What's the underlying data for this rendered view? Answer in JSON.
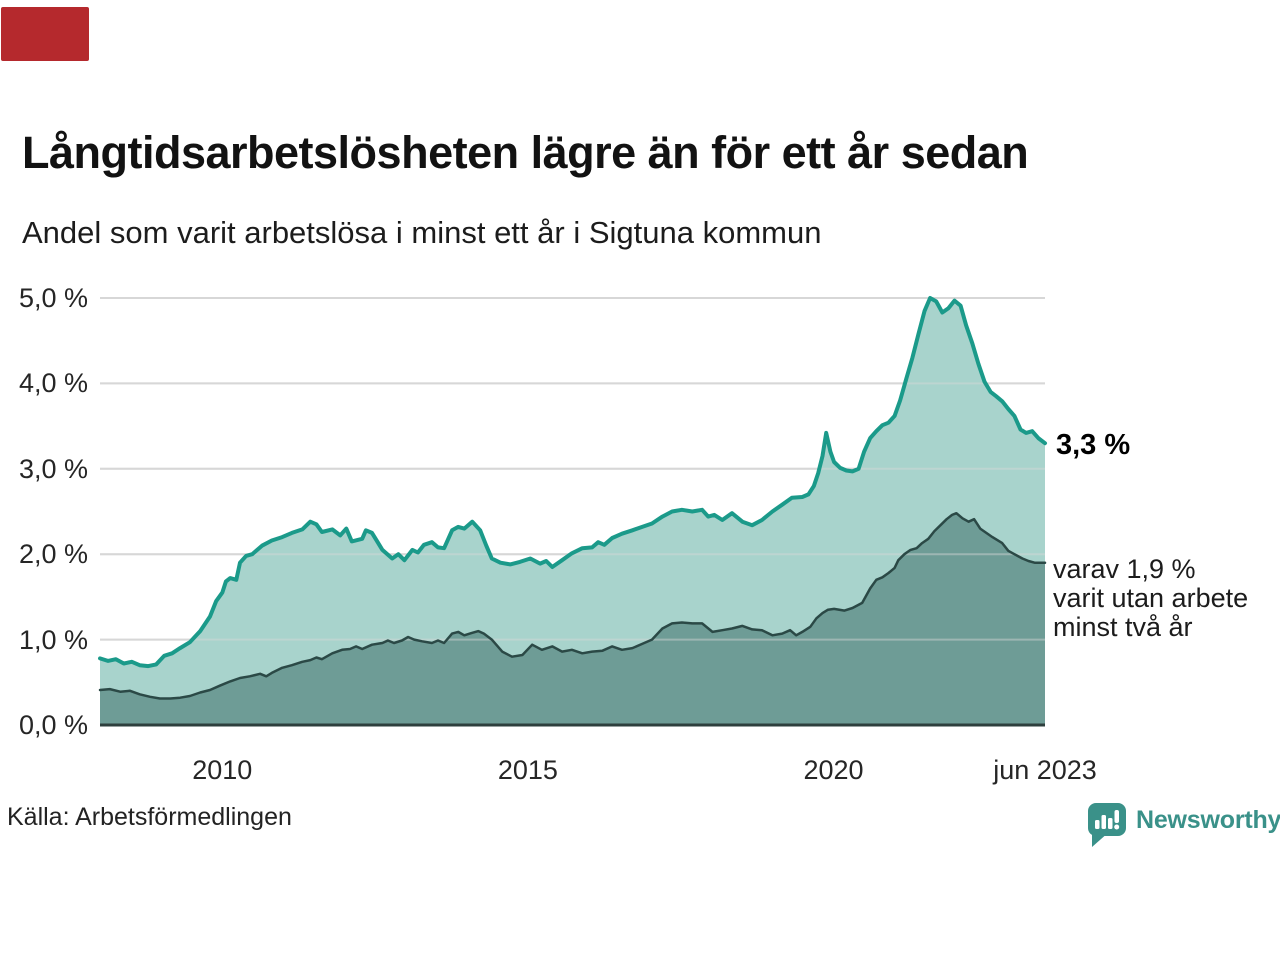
{
  "header": {
    "title": "Långtidsarbetslösheten lägre än för ett år sedan",
    "subtitle": "Andel som varit arbetslösa i minst ett år i Sigtuna kommun"
  },
  "footer": {
    "source": "Källa: Arbetsförmedlingen",
    "brand": "Newsworthy"
  },
  "marker": {
    "color": "#b5292d"
  },
  "chart_data": {
    "type": "area",
    "title": "Långtidsarbetslösheten lägre än för ett år sedan",
    "subtitle": "Andel som varit arbetslösa i minst ett år i Sigtuna kommun",
    "grid": true,
    "legend_position": "none",
    "colors": {
      "grid": "#d8d8d8",
      "grid_overlay": "rgba(216,216,216,0.45)",
      "baseline": "#2e3f3d",
      "brand_teal": "#3a9189"
    },
    "x_axis": {
      "range": [
        2008,
        2023.46
      ],
      "ticks": [
        {
          "label": "2010",
          "year": 2010
        },
        {
          "label": "2015",
          "year": 2015
        },
        {
          "label": "2020",
          "year": 2020
        },
        {
          "label": "jun 2023",
          "year": 2023.46
        }
      ]
    },
    "y_axis": {
      "range": [
        0,
        5.5
      ],
      "unit": "%",
      "gridlines": [
        1,
        2,
        3,
        4,
        5
      ],
      "ticks": [
        {
          "label": "5,0 %",
          "value": 5
        },
        {
          "label": "4,0 %",
          "value": 4
        },
        {
          "label": "3,0 %",
          "value": 3
        },
        {
          "label": "2,0 %",
          "value": 2
        },
        {
          "label": "1,0 %",
          "value": 1
        },
        {
          "label": "0,0 %",
          "value": 0
        }
      ]
    },
    "annotations": [
      {
        "text": "3,3 %",
        "value": 3.3
      },
      {
        "lines": [
          "varav 1,9 %",
          "varit utan arbete",
          "minst två år"
        ],
        "value": 1.9
      }
    ],
    "series": [
      {
        "name": "arbetslösa minst ett år",
        "line_color": "#1b9a8a",
        "fill_color": "#a8d3cc",
        "line_width": 4,
        "end_value": "3,3 %",
        "points": [
          [
            2008.0,
            0.78
          ],
          [
            2008.13,
            0.75
          ],
          [
            2008.26,
            0.77
          ],
          [
            2008.39,
            0.72
          ],
          [
            2008.52,
            0.74
          ],
          [
            2008.65,
            0.7
          ],
          [
            2008.79,
            0.69
          ],
          [
            2008.92,
            0.71
          ],
          [
            2009.05,
            0.81
          ],
          [
            2009.18,
            0.84
          ],
          [
            2009.31,
            0.9
          ],
          [
            2009.47,
            0.97
          ],
          [
            2009.64,
            1.1
          ],
          [
            2009.8,
            1.27
          ],
          [
            2009.9,
            1.45
          ],
          [
            2010.0,
            1.55
          ],
          [
            2010.06,
            1.68
          ],
          [
            2010.13,
            1.72
          ],
          [
            2010.23,
            1.7
          ],
          [
            2010.29,
            1.9
          ],
          [
            2010.39,
            1.98
          ],
          [
            2010.49,
            2.0
          ],
          [
            2010.65,
            2.1
          ],
          [
            2010.81,
            2.16
          ],
          [
            2010.98,
            2.2
          ],
          [
            2011.14,
            2.25
          ],
          [
            2011.31,
            2.29
          ],
          [
            2011.44,
            2.38
          ],
          [
            2011.54,
            2.35
          ],
          [
            2011.63,
            2.26
          ],
          [
            2011.8,
            2.29
          ],
          [
            2011.93,
            2.22
          ],
          [
            2012.03,
            2.3
          ],
          [
            2012.12,
            2.15
          ],
          [
            2012.29,
            2.18
          ],
          [
            2012.35,
            2.28
          ],
          [
            2012.45,
            2.25
          ],
          [
            2012.62,
            2.05
          ],
          [
            2012.78,
            1.95
          ],
          [
            2012.88,
            2.0
          ],
          [
            2012.98,
            1.93
          ],
          [
            2013.11,
            2.05
          ],
          [
            2013.2,
            2.02
          ],
          [
            2013.3,
            2.11
          ],
          [
            2013.43,
            2.14
          ],
          [
            2013.53,
            2.08
          ],
          [
            2013.63,
            2.07
          ],
          [
            2013.76,
            2.28
          ],
          [
            2013.86,
            2.32
          ],
          [
            2013.96,
            2.3
          ],
          [
            2014.09,
            2.38
          ],
          [
            2014.22,
            2.28
          ],
          [
            2014.32,
            2.1
          ],
          [
            2014.41,
            1.95
          ],
          [
            2014.55,
            1.9
          ],
          [
            2014.71,
            1.88
          ],
          [
            2014.87,
            1.91
          ],
          [
            2015.04,
            1.95
          ],
          [
            2015.2,
            1.89
          ],
          [
            2015.3,
            1.92
          ],
          [
            2015.4,
            1.85
          ],
          [
            2015.56,
            1.93
          ],
          [
            2015.72,
            2.01
          ],
          [
            2015.89,
            2.07
          ],
          [
            2016.05,
            2.08
          ],
          [
            2016.15,
            2.14
          ],
          [
            2016.25,
            2.11
          ],
          [
            2016.38,
            2.19
          ],
          [
            2016.54,
            2.24
          ],
          [
            2016.71,
            2.28
          ],
          [
            2016.87,
            2.32
          ],
          [
            2017.03,
            2.36
          ],
          [
            2017.2,
            2.44
          ],
          [
            2017.36,
            2.5
          ],
          [
            2017.52,
            2.52
          ],
          [
            2017.69,
            2.5
          ],
          [
            2017.85,
            2.52
          ],
          [
            2017.95,
            2.44
          ],
          [
            2018.05,
            2.46
          ],
          [
            2018.18,
            2.4
          ],
          [
            2018.34,
            2.48
          ],
          [
            2018.51,
            2.38
          ],
          [
            2018.67,
            2.34
          ],
          [
            2018.83,
            2.4
          ],
          [
            2019.0,
            2.5
          ],
          [
            2019.16,
            2.58
          ],
          [
            2019.32,
            2.66
          ],
          [
            2019.49,
            2.67
          ],
          [
            2019.59,
            2.7
          ],
          [
            2019.68,
            2.8
          ],
          [
            2019.75,
            2.95
          ],
          [
            2019.82,
            3.15
          ],
          [
            2019.88,
            3.42
          ],
          [
            2019.95,
            3.2
          ],
          [
            2020.01,
            3.08
          ],
          [
            2020.11,
            3.01
          ],
          [
            2020.21,
            2.98
          ],
          [
            2020.31,
            2.97
          ],
          [
            2020.41,
            3.0
          ],
          [
            2020.5,
            3.2
          ],
          [
            2020.6,
            3.36
          ],
          [
            2020.7,
            3.44
          ],
          [
            2020.8,
            3.51
          ],
          [
            2020.9,
            3.54
          ],
          [
            2021.0,
            3.62
          ],
          [
            2021.09,
            3.8
          ],
          [
            2021.19,
            4.05
          ],
          [
            2021.29,
            4.3
          ],
          [
            2021.39,
            4.58
          ],
          [
            2021.49,
            4.85
          ],
          [
            2021.58,
            5.0
          ],
          [
            2021.68,
            4.96
          ],
          [
            2021.78,
            4.83
          ],
          [
            2021.88,
            4.88
          ],
          [
            2021.98,
            4.97
          ],
          [
            2022.08,
            4.91
          ],
          [
            2022.17,
            4.68
          ],
          [
            2022.27,
            4.47
          ],
          [
            2022.37,
            4.23
          ],
          [
            2022.47,
            4.02
          ],
          [
            2022.57,
            3.9
          ],
          [
            2022.66,
            3.85
          ],
          [
            2022.76,
            3.79
          ],
          [
            2022.86,
            3.7
          ],
          [
            2022.96,
            3.62
          ],
          [
            2023.06,
            3.46
          ],
          [
            2023.15,
            3.42
          ],
          [
            2023.25,
            3.44
          ],
          [
            2023.35,
            3.36
          ],
          [
            2023.46,
            3.3
          ]
        ]
      },
      {
        "name": "arbetslösa minst två år",
        "line_color": "#2b4946",
        "fill_color": "#6e9c96",
        "line_width": 2.5,
        "end_value": "1,9 %",
        "points": [
          [
            2008.0,
            0.41
          ],
          [
            2008.16,
            0.42
          ],
          [
            2008.33,
            0.39
          ],
          [
            2008.49,
            0.4
          ],
          [
            2008.65,
            0.36
          ],
          [
            2008.82,
            0.33
          ],
          [
            2008.98,
            0.31
          ],
          [
            2009.15,
            0.31
          ],
          [
            2009.31,
            0.32
          ],
          [
            2009.47,
            0.34
          ],
          [
            2009.64,
            0.38
          ],
          [
            2009.8,
            0.41
          ],
          [
            2009.96,
            0.46
          ],
          [
            2010.13,
            0.51
          ],
          [
            2010.29,
            0.55
          ],
          [
            2010.45,
            0.57
          ],
          [
            2010.62,
            0.6
          ],
          [
            2010.72,
            0.57
          ],
          [
            2010.81,
            0.61
          ],
          [
            2010.98,
            0.67
          ],
          [
            2011.14,
            0.7
          ],
          [
            2011.31,
            0.74
          ],
          [
            2011.44,
            0.76
          ],
          [
            2011.54,
            0.79
          ],
          [
            2011.63,
            0.77
          ],
          [
            2011.8,
            0.84
          ],
          [
            2011.96,
            0.88
          ],
          [
            2012.09,
            0.89
          ],
          [
            2012.19,
            0.92
          ],
          [
            2012.29,
            0.89
          ],
          [
            2012.45,
            0.94
          ],
          [
            2012.62,
            0.96
          ],
          [
            2012.71,
            0.99
          ],
          [
            2012.81,
            0.96
          ],
          [
            2012.94,
            0.99
          ],
          [
            2013.04,
            1.03
          ],
          [
            2013.14,
            1.0
          ],
          [
            2013.27,
            0.98
          ],
          [
            2013.43,
            0.96
          ],
          [
            2013.53,
            0.99
          ],
          [
            2013.63,
            0.96
          ],
          [
            2013.76,
            1.07
          ],
          [
            2013.86,
            1.09
          ],
          [
            2013.96,
            1.05
          ],
          [
            2014.09,
            1.08
          ],
          [
            2014.19,
            1.1
          ],
          [
            2014.28,
            1.07
          ],
          [
            2014.41,
            1.0
          ],
          [
            2014.58,
            0.86
          ],
          [
            2014.74,
            0.8
          ],
          [
            2014.91,
            0.82
          ],
          [
            2015.07,
            0.94
          ],
          [
            2015.23,
            0.88
          ],
          [
            2015.4,
            0.92
          ],
          [
            2015.56,
            0.86
          ],
          [
            2015.72,
            0.88
          ],
          [
            2015.89,
            0.84
          ],
          [
            2016.05,
            0.86
          ],
          [
            2016.22,
            0.87
          ],
          [
            2016.38,
            0.92
          ],
          [
            2016.54,
            0.88
          ],
          [
            2016.71,
            0.9
          ],
          [
            2016.87,
            0.95
          ],
          [
            2017.03,
            1.0
          ],
          [
            2017.2,
            1.13
          ],
          [
            2017.36,
            1.19
          ],
          [
            2017.52,
            1.2
          ],
          [
            2017.69,
            1.19
          ],
          [
            2017.85,
            1.19
          ],
          [
            2018.02,
            1.09
          ],
          [
            2018.18,
            1.11
          ],
          [
            2018.34,
            1.13
          ],
          [
            2018.51,
            1.16
          ],
          [
            2018.67,
            1.12
          ],
          [
            2018.83,
            1.11
          ],
          [
            2019.0,
            1.05
          ],
          [
            2019.16,
            1.07
          ],
          [
            2019.29,
            1.11
          ],
          [
            2019.39,
            1.05
          ],
          [
            2019.49,
            1.09
          ],
          [
            2019.62,
            1.15
          ],
          [
            2019.72,
            1.25
          ],
          [
            2019.82,
            1.31
          ],
          [
            2019.91,
            1.35
          ],
          [
            2020.01,
            1.36
          ],
          [
            2020.18,
            1.34
          ],
          [
            2020.31,
            1.37
          ],
          [
            2020.47,
            1.43
          ],
          [
            2020.6,
            1.6
          ],
          [
            2020.7,
            1.7
          ],
          [
            2020.8,
            1.73
          ],
          [
            2020.9,
            1.78
          ],
          [
            2021.0,
            1.84
          ],
          [
            2021.06,
            1.93
          ],
          [
            2021.16,
            2.0
          ],
          [
            2021.26,
            2.05
          ],
          [
            2021.36,
            2.07
          ],
          [
            2021.45,
            2.13
          ],
          [
            2021.55,
            2.18
          ],
          [
            2021.65,
            2.27
          ],
          [
            2021.75,
            2.34
          ],
          [
            2021.85,
            2.41
          ],
          [
            2021.94,
            2.46
          ],
          [
            2022.01,
            2.48
          ],
          [
            2022.11,
            2.42
          ],
          [
            2022.21,
            2.38
          ],
          [
            2022.3,
            2.41
          ],
          [
            2022.4,
            2.3
          ],
          [
            2022.5,
            2.25
          ],
          [
            2022.6,
            2.2
          ],
          [
            2022.76,
            2.13
          ],
          [
            2022.86,
            2.04
          ],
          [
            2022.96,
            2.0
          ],
          [
            2023.09,
            1.95
          ],
          [
            2023.19,
            1.92
          ],
          [
            2023.29,
            1.9
          ],
          [
            2023.46,
            1.9
          ]
        ]
      }
    ]
  }
}
